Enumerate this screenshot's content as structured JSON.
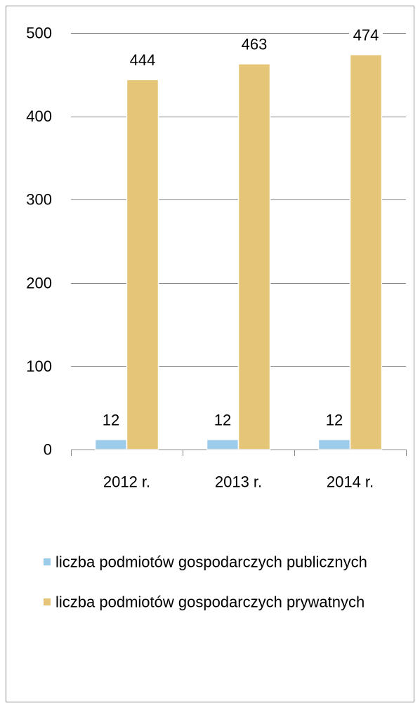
{
  "chart_data": {
    "type": "bar",
    "categories": [
      "2012 r.",
      "2013 r.",
      "2014 r."
    ],
    "series": [
      {
        "name": "liczba podmiotów gospodarczych publicznych",
        "values": [
          12,
          12,
          12
        ],
        "color": "#9DCBEA"
      },
      {
        "name": "liczba podmiotów gospodarczych prywatnych",
        "values": [
          444,
          463,
          474
        ],
        "color": "#E5C577"
      }
    ],
    "yticks": [
      0,
      100,
      200,
      300,
      400,
      500
    ],
    "ylim": [
      0,
      500
    ],
    "grid": true,
    "data_labels": true,
    "legend": "bottom"
  }
}
